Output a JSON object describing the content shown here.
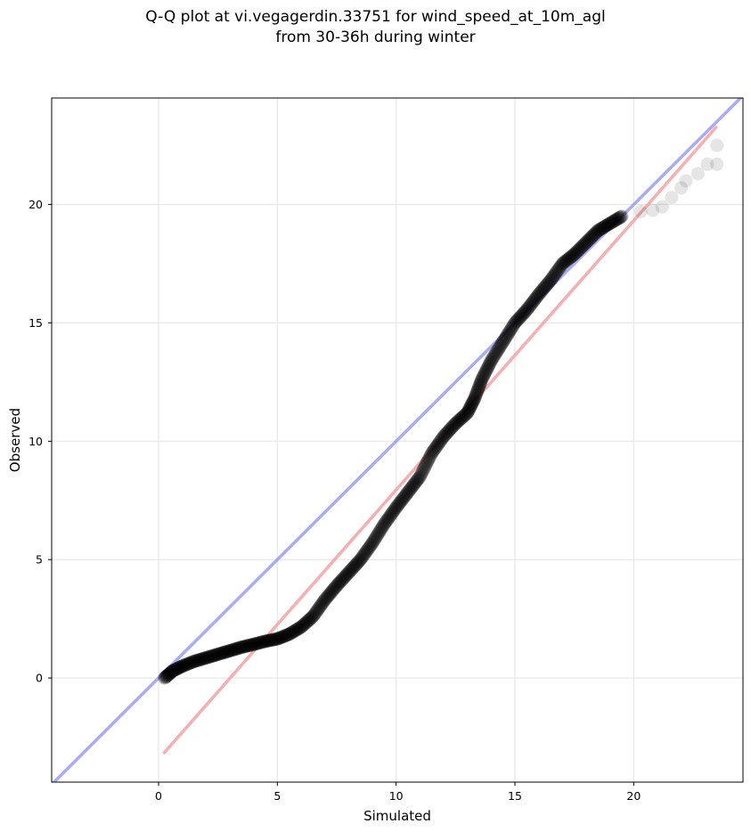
{
  "chart_data": {
    "type": "scatter",
    "title_line1": "Q-Q plot at vi.vegagerdin.33751 for wind_speed_at_10m_agl",
    "title_line2": "from 30-36h during winter",
    "xlabel": "Simulated",
    "ylabel": "Observed",
    "xlim": [
      -4.5,
      24.6
    ],
    "ylim": [
      -4.4,
      24.5
    ],
    "xticks": [
      0,
      5,
      10,
      15,
      20
    ],
    "yticks": [
      0,
      5,
      10,
      15,
      20
    ],
    "grid": true,
    "point_color": "#000000",
    "identity_line": {
      "color": "#8c8ff0",
      "from": [
        -4.5,
        -4.5
      ],
      "to": [
        24.6,
        24.6
      ]
    },
    "fit_line": {
      "color": "#f59a9e",
      "from": [
        0.2,
        -3.2
      ],
      "to": [
        23.5,
        23.3
      ]
    },
    "curve_points": [
      [
        0.25,
        0.0
      ],
      [
        0.6,
        0.3
      ],
      [
        1.0,
        0.5
      ],
      [
        1.5,
        0.7
      ],
      [
        2.0,
        0.85
      ],
      [
        2.5,
        1.0
      ],
      [
        3.0,
        1.15
      ],
      [
        3.5,
        1.3
      ],
      [
        4.0,
        1.42
      ],
      [
        4.5,
        1.55
      ],
      [
        5.0,
        1.65
      ],
      [
        5.5,
        1.85
      ],
      [
        6.0,
        2.15
      ],
      [
        6.5,
        2.6
      ],
      [
        7.0,
        3.3
      ],
      [
        7.5,
        3.9
      ],
      [
        8.0,
        4.45
      ],
      [
        8.5,
        5.0
      ],
      [
        9.0,
        5.7
      ],
      [
        9.5,
        6.5
      ],
      [
        10.0,
        7.2
      ],
      [
        10.5,
        7.85
      ],
      [
        11.0,
        8.5
      ],
      [
        11.5,
        9.5
      ],
      [
        12.0,
        10.2
      ],
      [
        12.5,
        10.75
      ],
      [
        13.0,
        11.2
      ],
      [
        13.3,
        11.8
      ],
      [
        13.6,
        12.6
      ],
      [
        14.0,
        13.4
      ],
      [
        14.5,
        14.2
      ],
      [
        15.0,
        15.0
      ],
      [
        15.5,
        15.55
      ],
      [
        16.0,
        16.2
      ],
      [
        16.5,
        16.8
      ],
      [
        17.0,
        17.5
      ],
      [
        17.5,
        17.9
      ],
      [
        18.0,
        18.4
      ],
      [
        18.5,
        18.9
      ],
      [
        19.0,
        19.2
      ],
      [
        19.5,
        19.5
      ]
    ],
    "tail_points": [
      [
        20.3,
        19.7
      ],
      [
        20.8,
        19.75
      ],
      [
        21.2,
        19.9
      ],
      [
        21.6,
        20.3
      ],
      [
        22.0,
        20.7
      ],
      [
        22.2,
        21.0
      ],
      [
        22.7,
        21.3
      ],
      [
        23.1,
        21.7
      ],
      [
        23.5,
        21.7
      ],
      [
        23.5,
        22.5
      ]
    ]
  }
}
